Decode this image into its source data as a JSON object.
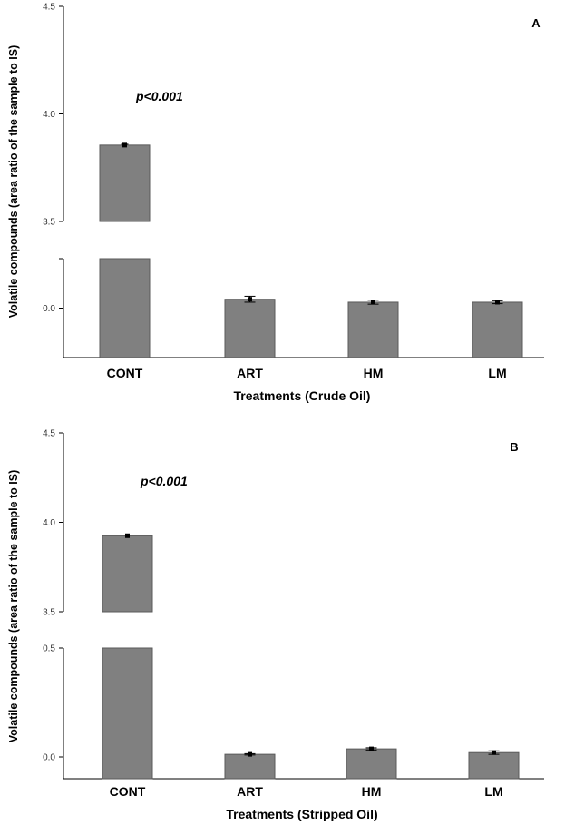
{
  "colors": {
    "bar": "#808080",
    "bar_stroke": "#5a5a5a",
    "axis": "#000000",
    "error": "#000000"
  },
  "chart_data": [
    {
      "type": "bar",
      "panel_label": "A",
      "annotation": "p<0.001",
      "xlabel": "Treatments (Crude Oil)",
      "ylabel": "Volatile compounds (area ratio of the sample to IS)",
      "categories": [
        "CONT",
        "ART",
        "HM",
        "LM"
      ],
      "values": [
        3.855,
        0.018,
        0.012,
        0.012
      ],
      "errors": [
        0.004,
        0.006,
        0.004,
        0.003
      ],
      "axis_break": true,
      "upper_segment": {
        "ylim": [
          3.5,
          4.5
        ],
        "ticks": [
          "3.5",
          "4.0",
          "4.5"
        ]
      },
      "lower_segment": {
        "ylim": [
          -0.1,
          0.1
        ],
        "ticks": [
          "0.0"
        ]
      },
      "grid": false
    },
    {
      "type": "bar",
      "panel_label": "B",
      "annotation": "p<0.001",
      "xlabel": "Treatments (Stripped Oil)",
      "ylabel": "Volatile compounds (area ratio of the sample to IS)",
      "categories": [
        "CONT",
        "ART",
        "HM",
        "LM"
      ],
      "values": [
        3.925,
        0.012,
        0.037,
        0.02
      ],
      "errors": [
        0.004,
        0.003,
        0.005,
        0.008
      ],
      "axis_break": true,
      "upper_segment": {
        "ylim": [
          3.5,
          4.5
        ],
        "ticks": [
          "3.5",
          "4.0",
          "4.5"
        ]
      },
      "lower_segment": {
        "ylim": [
          -0.1,
          0.5
        ],
        "ticks": [
          "0.0",
          "0.5"
        ]
      },
      "grid": false
    }
  ]
}
